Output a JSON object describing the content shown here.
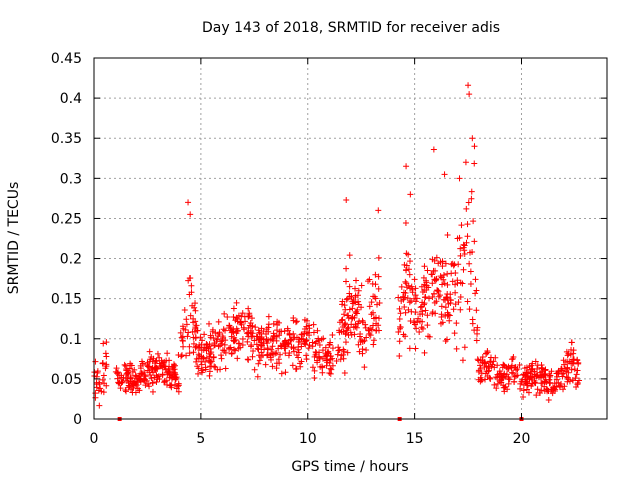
{
  "chart_data": {
    "type": "scatter",
    "title": "Day 143 of 2018, SRMTID for receiver adis",
    "xlabel": "GPS time / hours",
    "ylabel": "SRMTID / TECUs",
    "xlim": [
      0,
      24
    ],
    "ylim": [
      0,
      0.45
    ],
    "x_ticks": [
      0,
      5,
      10,
      15,
      20
    ],
    "x_tick_labels": [
      "0",
      "5",
      "10",
      "15",
      "20"
    ],
    "y_ticks": [
      0,
      0.05,
      0.1,
      0.15,
      0.2,
      0.25,
      0.3,
      0.35,
      0.4,
      0.45
    ],
    "y_tick_labels": [
      "0",
      "0.05",
      "0.1",
      "0.15",
      "0.2",
      "0.25",
      "0.3",
      "0.35",
      "0.4",
      "0.45"
    ],
    "grid": true,
    "marker": "plus",
    "color": "#ff0000",
    "profile": [
      [
        0.0,
        0.04,
        0.015
      ],
      [
        0.3,
        0.05,
        0.02
      ],
      [
        0.5,
        0.07,
        0.02
      ],
      [
        1.0,
        0.06,
        0.01
      ],
      [
        1.2,
        0.05,
        0.01
      ],
      [
        1.5,
        0.055,
        0.012
      ],
      [
        2.0,
        0.045,
        0.012
      ],
      [
        2.5,
        0.06,
        0.015
      ],
      [
        3.0,
        0.065,
        0.015
      ],
      [
        3.5,
        0.06,
        0.015
      ],
      [
        3.9,
        0.05,
        0.015
      ],
      [
        4.2,
        0.11,
        0.035
      ],
      [
        4.5,
        0.14,
        0.04
      ],
      [
        5.0,
        0.08,
        0.02
      ],
      [
        5.5,
        0.085,
        0.02
      ],
      [
        6.0,
        0.095,
        0.022
      ],
      [
        6.5,
        0.1,
        0.025
      ],
      [
        7.0,
        0.115,
        0.025
      ],
      [
        7.5,
        0.1,
        0.025
      ],
      [
        8.0,
        0.09,
        0.025
      ],
      [
        8.5,
        0.095,
        0.025
      ],
      [
        9.0,
        0.09,
        0.025
      ],
      [
        9.5,
        0.1,
        0.025
      ],
      [
        10.0,
        0.105,
        0.025
      ],
      [
        10.5,
        0.08,
        0.02
      ],
      [
        11.0,
        0.07,
        0.02
      ],
      [
        11.5,
        0.1,
        0.03
      ],
      [
        12.0,
        0.14,
        0.04
      ],
      [
        12.5,
        0.11,
        0.03
      ],
      [
        13.0,
        0.13,
        0.04
      ],
      [
        13.3,
        0.15,
        0.05
      ],
      [
        14.3,
        0.12,
        0.03
      ],
      [
        14.6,
        0.17,
        0.05
      ],
      [
        15.0,
        0.14,
        0.04
      ],
      [
        15.5,
        0.15,
        0.04
      ],
      [
        16.0,
        0.16,
        0.04
      ],
      [
        16.5,
        0.15,
        0.04
      ],
      [
        17.0,
        0.16,
        0.05
      ],
      [
        17.5,
        0.2,
        0.08
      ],
      [
        17.8,
        0.2,
        0.08
      ],
      [
        18.0,
        0.07,
        0.02
      ],
      [
        18.5,
        0.06,
        0.02
      ],
      [
        19.0,
        0.055,
        0.015
      ],
      [
        19.5,
        0.06,
        0.015
      ],
      [
        20.0,
        0.05,
        0.015
      ],
      [
        20.5,
        0.055,
        0.015
      ],
      [
        21.0,
        0.05,
        0.015
      ],
      [
        21.5,
        0.045,
        0.012
      ],
      [
        22.0,
        0.055,
        0.015
      ],
      [
        22.3,
        0.075,
        0.02
      ],
      [
        22.7,
        0.06,
        0.015
      ]
    ],
    "gaps": [
      [
        0.6,
        1.0
      ],
      [
        13.4,
        14.2
      ],
      [
        22.8,
        24
      ]
    ],
    "peaks": [
      {
        "x": 4.4,
        "y": 0.27
      },
      {
        "x": 4.5,
        "y": 0.255
      },
      {
        "x": 11.8,
        "y": 0.273
      },
      {
        "x": 14.6,
        "y": 0.315
      },
      {
        "x": 15.9,
        "y": 0.336
      },
      {
        "x": 17.5,
        "y": 0.416
      },
      {
        "x": 17.55,
        "y": 0.405
      },
      {
        "x": 17.7,
        "y": 0.35
      },
      {
        "x": 17.8,
        "y": 0.34
      },
      {
        "x": 17.4,
        "y": 0.32
      },
      {
        "x": 16.4,
        "y": 0.305
      },
      {
        "x": 13.3,
        "y": 0.26
      },
      {
        "x": 14.8,
        "y": 0.28
      },
      {
        "x": 17.1,
        "y": 0.3
      }
    ],
    "zero_points": [
      1.2,
      14.3,
      20.0
    ]
  }
}
